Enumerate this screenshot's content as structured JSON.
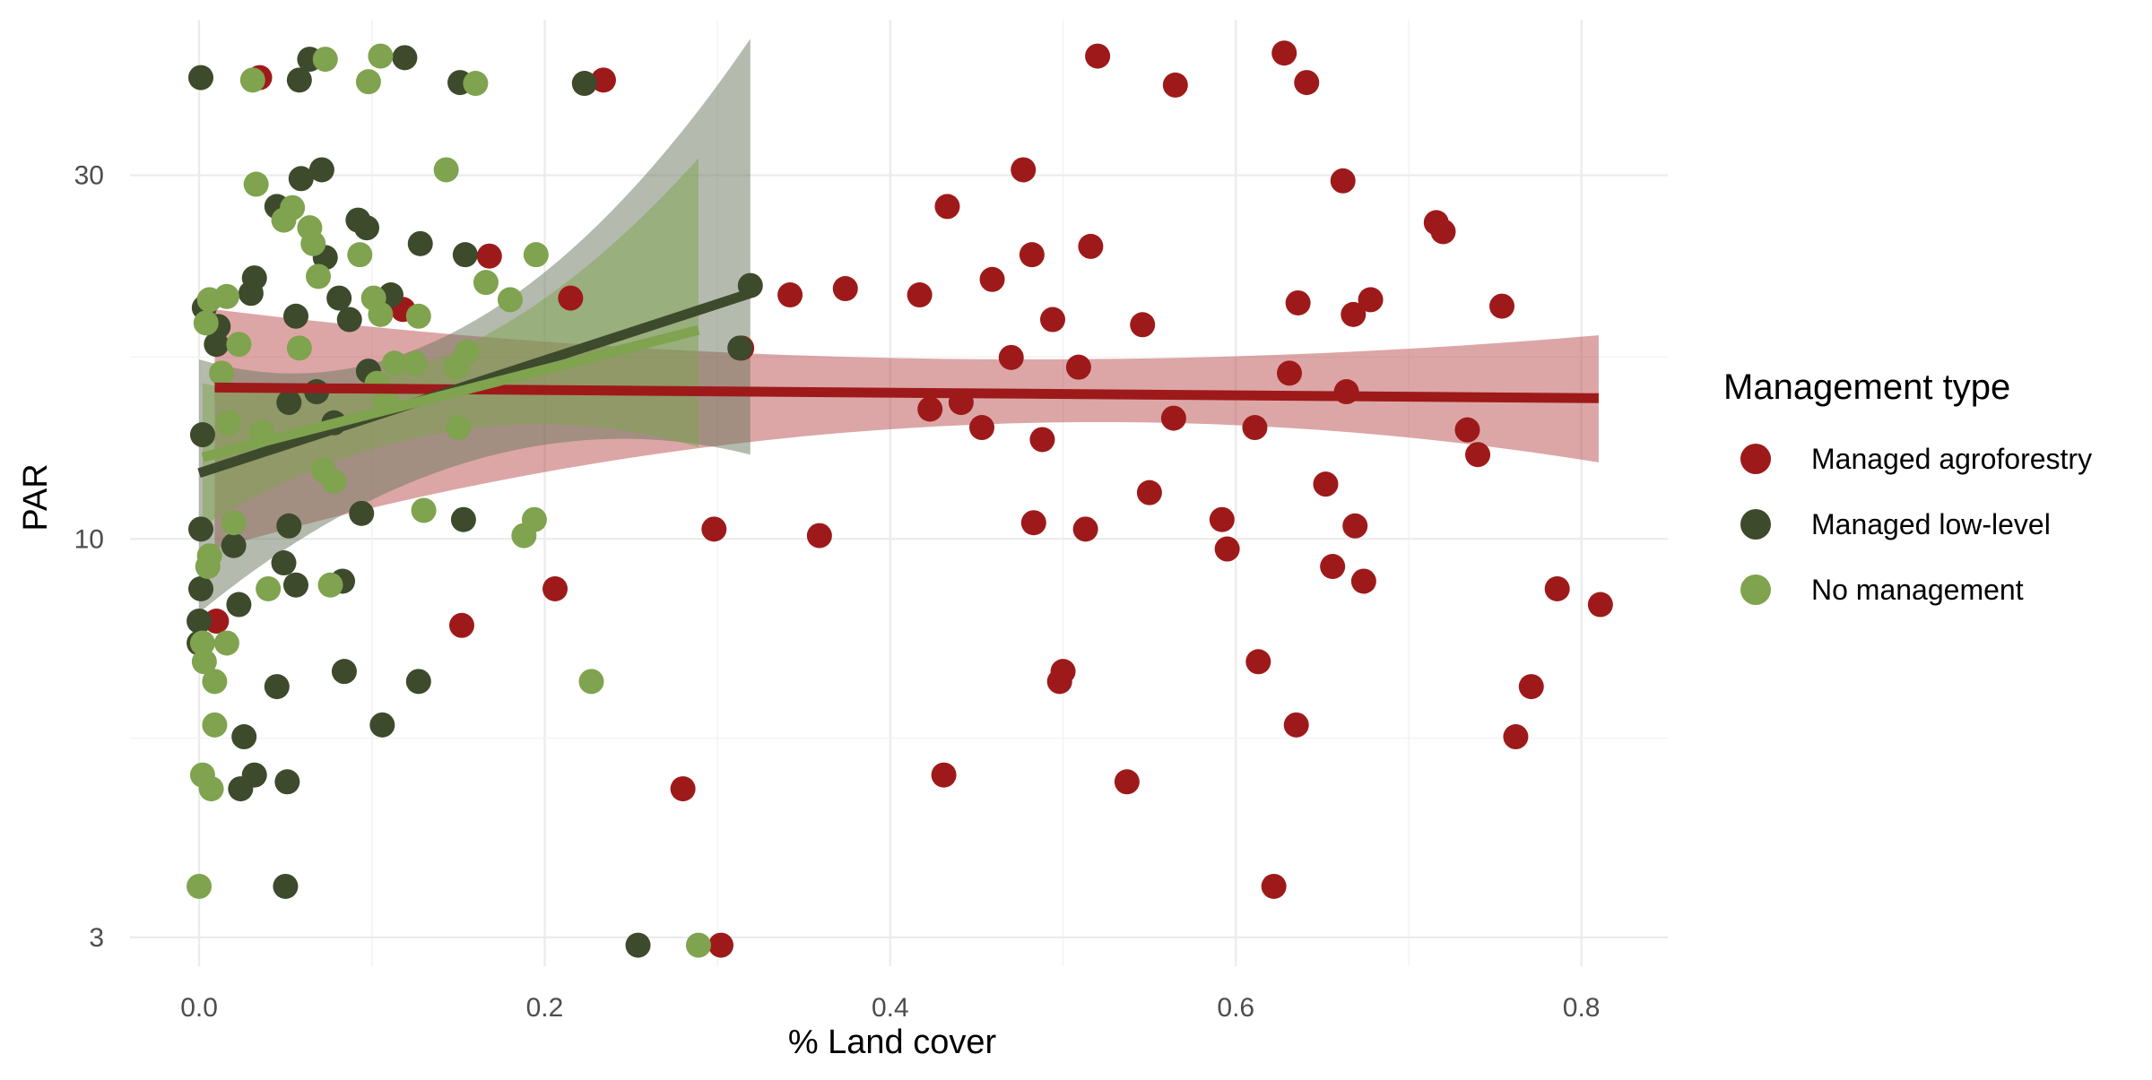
{
  "chart_data": {
    "type": "scatter",
    "xlabel": "% Land cover",
    "ylabel": "PAR",
    "x_scale": "linear",
    "y_scale": "log",
    "xlim": [
      -0.04,
      0.85
    ],
    "ylim": [
      2.75,
      48
    ],
    "x_ticks": [
      {
        "value": 0.0,
        "label": "0.0"
      },
      {
        "value": 0.2,
        "label": "0.2"
      },
      {
        "value": 0.4,
        "label": "0.4"
      },
      {
        "value": 0.6,
        "label": "0.6"
      },
      {
        "value": 0.8,
        "label": "0.8"
      }
    ],
    "y_ticks": [
      {
        "value": 3,
        "label": "3"
      },
      {
        "value": 10,
        "label": "10"
      },
      {
        "value": 30,
        "label": "30"
      }
    ],
    "y_minor_ticks": [
      5.477,
      17.32
    ],
    "grid": true,
    "legend": {
      "title": "Management type",
      "position": "right"
    },
    "series": [
      {
        "name": "Managed agroforestry",
        "color": "#9e1a1a",
        "points": [
          [
            0.035,
            40.3
          ],
          [
            0.234,
            40.0
          ],
          [
            0.52,
            43.0
          ],
          [
            0.565,
            39.4
          ],
          [
            0.628,
            43.4
          ],
          [
            0.641,
            39.7
          ],
          [
            0.477,
            30.5
          ],
          [
            0.662,
            29.5
          ],
          [
            0.433,
            27.3
          ],
          [
            0.716,
            26.0
          ],
          [
            0.72,
            25.3
          ],
          [
            0.516,
            24.2
          ],
          [
            0.168,
            23.5
          ],
          [
            0.482,
            23.6
          ],
          [
            0.459,
            21.9
          ],
          [
            0.342,
            20.9
          ],
          [
            0.374,
            21.3
          ],
          [
            0.417,
            20.9
          ],
          [
            0.636,
            20.4
          ],
          [
            0.678,
            20.6
          ],
          [
            0.754,
            20.2
          ],
          [
            0.118,
            20.0
          ],
          [
            0.215,
            20.7
          ],
          [
            0.494,
            19.4
          ],
          [
            0.546,
            19.1
          ],
          [
            0.668,
            19.7
          ],
          [
            0.314,
            17.8
          ],
          [
            0.47,
            17.3
          ],
          [
            0.509,
            16.8
          ],
          [
            0.631,
            16.5
          ],
          [
            0.664,
            15.6
          ],
          [
            0.423,
            14.8
          ],
          [
            0.441,
            15.1
          ],
          [
            0.564,
            14.4
          ],
          [
            0.453,
            14.0
          ],
          [
            0.611,
            14.0
          ],
          [
            0.734,
            13.9
          ],
          [
            0.488,
            13.5
          ],
          [
            0.74,
            12.9
          ],
          [
            0.652,
            11.8
          ],
          [
            0.55,
            11.5
          ],
          [
            0.592,
            10.6
          ],
          [
            0.483,
            10.5
          ],
          [
            0.669,
            10.4
          ],
          [
            0.298,
            10.3
          ],
          [
            0.513,
            10.3
          ],
          [
            0.359,
            10.1
          ],
          [
            0.595,
            9.7
          ],
          [
            0.656,
            9.2
          ],
          [
            0.674,
            8.8
          ],
          [
            0.786,
            8.6
          ],
          [
            0.811,
            8.2
          ],
          [
            0.01,
            7.8
          ],
          [
            0.152,
            7.7
          ],
          [
            0.206,
            8.6
          ],
          [
            0.613,
            6.9
          ],
          [
            0.5,
            6.7
          ],
          [
            0.498,
            6.5
          ],
          [
            0.771,
            6.4
          ],
          [
            0.635,
            5.7
          ],
          [
            0.762,
            5.5
          ],
          [
            0.431,
            4.9
          ],
          [
            0.537,
            4.8
          ],
          [
            0.28,
            4.7
          ],
          [
            0.622,
            3.5
          ],
          [
            0.302,
            2.93
          ]
        ]
      },
      {
        "name": "Managed low-level",
        "color": "#3d4a2c",
        "points": [
          [
            0.001,
            40.3
          ],
          [
            0.064,
            42.6
          ],
          [
            0.119,
            42.8
          ],
          [
            0.058,
            40.0
          ],
          [
            0.151,
            39.7
          ],
          [
            0.223,
            39.6
          ],
          [
            0.071,
            30.5
          ],
          [
            0.059,
            29.7
          ],
          [
            0.045,
            27.3
          ],
          [
            0.092,
            26.2
          ],
          [
            0.097,
            25.6
          ],
          [
            0.128,
            24.4
          ],
          [
            0.154,
            23.6
          ],
          [
            0.073,
            23.4
          ],
          [
            0.032,
            22.0
          ],
          [
            0.003,
            20.1
          ],
          [
            0.03,
            21.0
          ],
          [
            0.081,
            20.7
          ],
          [
            0.111,
            20.9
          ],
          [
            0.056,
            19.6
          ],
          [
            0.087,
            19.4
          ],
          [
            0.011,
            19.0
          ],
          [
            0.01,
            18.0
          ],
          [
            0.319,
            21.5
          ],
          [
            0.313,
            17.8
          ],
          [
            0.098,
            16.6
          ],
          [
            0.068,
            15.6
          ],
          [
            0.052,
            15.1
          ],
          [
            0.078,
            14.2
          ],
          [
            0.002,
            13.7
          ],
          [
            0.094,
            10.8
          ],
          [
            0.153,
            10.6
          ],
          [
            0.052,
            10.4
          ],
          [
            0.001,
            10.3
          ],
          [
            0.02,
            9.8
          ],
          [
            0.049,
            9.3
          ],
          [
            0.083,
            8.8
          ],
          [
            0.056,
            8.7
          ],
          [
            0.001,
            8.6
          ],
          [
            0.023,
            8.2
          ],
          [
            0.0,
            7.8
          ],
          [
            0.0,
            7.3
          ],
          [
            0.084,
            6.7
          ],
          [
            0.127,
            6.5
          ],
          [
            0.045,
            6.4
          ],
          [
            0.106,
            5.7
          ],
          [
            0.026,
            5.5
          ],
          [
            0.032,
            4.9
          ],
          [
            0.051,
            4.8
          ],
          [
            0.024,
            4.7
          ],
          [
            0.05,
            3.5
          ],
          [
            0.254,
            2.93
          ]
        ]
      },
      {
        "name": "No management",
        "color": "#7fa34e",
        "points": [
          [
            0.073,
            42.6
          ],
          [
            0.105,
            43.0
          ],
          [
            0.031,
            40.0
          ],
          [
            0.098,
            39.8
          ],
          [
            0.16,
            39.6
          ],
          [
            0.143,
            30.5
          ],
          [
            0.033,
            29.2
          ],
          [
            0.054,
            27.2
          ],
          [
            0.049,
            26.2
          ],
          [
            0.064,
            25.6
          ],
          [
            0.066,
            24.4
          ],
          [
            0.093,
            23.6
          ],
          [
            0.195,
            23.6
          ],
          [
            0.069,
            22.1
          ],
          [
            0.166,
            21.7
          ],
          [
            0.18,
            20.6
          ],
          [
            0.006,
            20.6
          ],
          [
            0.016,
            20.8
          ],
          [
            0.101,
            20.7
          ],
          [
            0.105,
            19.7
          ],
          [
            0.127,
            19.6
          ],
          [
            0.004,
            19.2
          ],
          [
            0.023,
            18.0
          ],
          [
            0.058,
            17.8
          ],
          [
            0.013,
            16.5
          ],
          [
            0.125,
            17.0
          ],
          [
            0.113,
            17.0
          ],
          [
            0.149,
            16.8
          ],
          [
            0.155,
            17.6
          ],
          [
            0.103,
            16.0
          ],
          [
            0.108,
            15.3
          ],
          [
            0.017,
            14.2
          ],
          [
            0.036,
            13.8
          ],
          [
            0.15,
            14.0
          ],
          [
            0.072,
            12.3
          ],
          [
            0.078,
            11.9
          ],
          [
            0.02,
            10.5
          ],
          [
            0.13,
            10.9
          ],
          [
            0.194,
            10.6
          ],
          [
            0.188,
            10.1
          ],
          [
            0.006,
            9.5
          ],
          [
            0.005,
            9.2
          ],
          [
            0.04,
            8.6
          ],
          [
            0.076,
            8.7
          ],
          [
            0.002,
            7.3
          ],
          [
            0.016,
            7.3
          ],
          [
            0.003,
            6.9
          ],
          [
            0.009,
            6.5
          ],
          [
            0.227,
            6.5
          ],
          [
            0.009,
            5.7
          ],
          [
            0.002,
            4.9
          ],
          [
            0.007,
            4.7
          ],
          [
            0.0,
            3.5
          ],
          [
            0.289,
            2.93
          ]
        ]
      }
    ],
    "fits": [
      {
        "series": "Managed agroforestry",
        "color": "#9e1a1a",
        "x": [
          0.009,
          0.81
        ],
        "y": [
          15.8,
          15.3
        ],
        "ci_upper": [
          20.0,
          18.5
        ],
        "ci_lower": [
          9.7,
          12.6
        ]
      },
      {
        "series": "Managed low-level",
        "color": "#3d4a2c",
        "x": [
          0.0,
          0.319
        ],
        "y": [
          12.2,
          21.0
        ],
        "ci_upper": [
          17.2,
          45.3
        ],
        "ci_lower": [
          8.0,
          12.9
        ]
      },
      {
        "series": "No management",
        "color": "#7fa34e",
        "x": [
          0.002,
          0.289
        ],
        "y": [
          12.8,
          18.8
        ],
        "ci_upper": [
          16.0,
          31.6
        ],
        "ci_lower": [
          10.4,
          13.2
        ]
      }
    ]
  }
}
